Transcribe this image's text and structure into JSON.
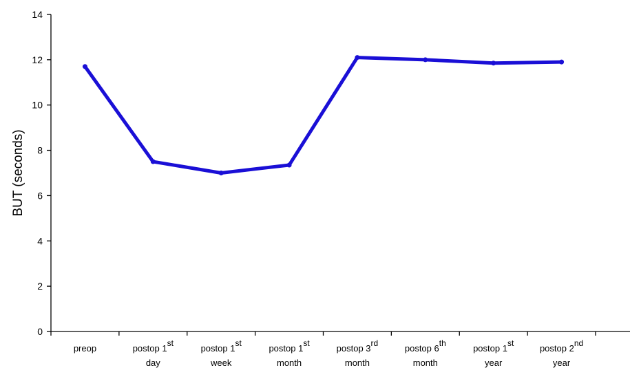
{
  "chart_data": {
    "type": "line",
    "ylabel": "BUT (seconds)",
    "xlabel": "",
    "ylim": [
      0,
      14
    ],
    "yticks": [
      0,
      2,
      4,
      6,
      8,
      10,
      12,
      14
    ],
    "grid": false,
    "categories": [
      {
        "line1": "preop",
        "sup": "",
        "line2": ""
      },
      {
        "line1": "postop 1",
        "sup": "st",
        "line2": "day"
      },
      {
        "line1": "postop 1",
        "sup": "st",
        "line2": "week"
      },
      {
        "line1": "postop 1",
        "sup": "st",
        "line2": "month"
      },
      {
        "line1": "postop 3",
        "sup": "rd",
        "line2": "month"
      },
      {
        "line1": "postop 6",
        "sup": "th",
        "line2": "month"
      },
      {
        "line1": "postop 1",
        "sup": "st",
        "line2": "year"
      },
      {
        "line1": "postop 2",
        "sup": "nd",
        "line2": "year"
      }
    ],
    "series": [
      {
        "values": [
          11.7,
          7.5,
          7.0,
          7.35,
          12.1,
          12.0,
          11.85,
          11.9
        ],
        "color": "#1a0fd6"
      }
    ]
  }
}
